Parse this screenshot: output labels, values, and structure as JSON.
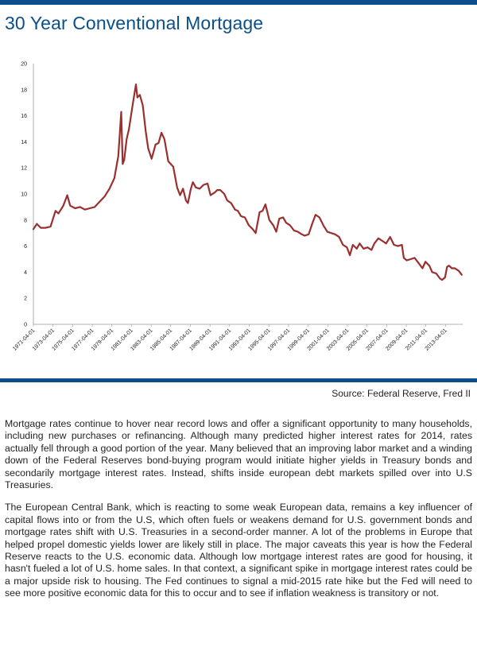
{
  "title": "30 Year Conventional Mortgage",
  "source": "Source: Federal Reserve, Fred II",
  "paragraphs": [
    "Mortgage rates continue to hover near record lows and offer a significant opportunity to many households, including new purchases or refinancing. Although many predicted higher interest rates for 2014, rates actually fell through a good portion of the year. Many believed that an improving labor market and a winding down of the Federal Reserves bond-buying program would initiate higher yields in Treasury bonds and secondarily mortgage interest rates. Instead, shifts inside european debt markets spilled over into U.S Treasuries.",
    "The European Central Bank, which is reacting to some weak European data, remains a key influencer of capital flows into or from the U.S, which often fuels or weakens demand for U.S. government bonds and mortgage rates shift with U.S. Treasuries in a second-order manner. A lot of the problems in Europe that helped propel domestic yields lower are likely still in place. The major caveats this year is how the Federal Reserve reacts to the U.S. economic data. Although low mortgage interest rates are good for housing, it hasn't fueled a lot of U.S. home sales. In that context, a significant spike in mortgage interest rates could be a major upside risk to housing. The Fed continues to signal a mid-2015 rate hike but the Fed will need to see more positive economic data for this to occur and to see if inflation weakness is transitory or not."
  ],
  "chart_data": {
    "type": "line",
    "title": "",
    "xlabel": "",
    "ylabel": "",
    "ylim": [
      0,
      20
    ],
    "yticks": [
      "0",
      "2",
      "4",
      "6",
      "8",
      "10",
      "12",
      "14",
      "16",
      "18",
      "20"
    ],
    "xticks": [
      "1971-04-01",
      "1973-04-01",
      "1975-04-01",
      "1977-04-01",
      "1979-04-01",
      "1981-04-01",
      "1983-04-01",
      "1985-04-01",
      "1987-04-01",
      "1989-04-01",
      "1991-04-01",
      "1993-04-01",
      "1995-04-01",
      "1997-04-01",
      "1999-04-01",
      "2001-04-01",
      "2003-04-01",
      "2005-04-01",
      "2007-04-01",
      "2009-04-01",
      "2011-04-01",
      "2013-04-01"
    ],
    "grid": false,
    "line_color": "#9b2f2f",
    "series": [
      {
        "x": [
          1971.25,
          1971.6,
          1972.0,
          1972.5,
          1973.0,
          1973.5,
          1973.8,
          1974.3,
          1974.7,
          1975.0,
          1975.5,
          1976.0,
          1976.5,
          1977.0,
          1977.5,
          1978.0,
          1978.5,
          1979.0,
          1979.5,
          1979.9,
          1980.2,
          1980.35,
          1980.5,
          1980.75,
          1981.0,
          1981.3,
          1981.7,
          1981.85,
          1982.1,
          1982.4,
          1982.7,
          1982.95,
          1983.3,
          1983.7,
          1984.0,
          1984.3,
          1984.6,
          1985.0,
          1985.5,
          1985.9,
          1986.2,
          1986.5,
          1986.8,
          1987.0,
          1987.3,
          1987.5,
          1987.8,
          1988.2,
          1988.6,
          1989.0,
          1989.3,
          1989.7,
          1990.0,
          1990.3,
          1990.7,
          1991.0,
          1991.4,
          1991.8,
          1992.1,
          1992.4,
          1992.8,
          1993.2,
          1993.6,
          1993.9,
          1994.3,
          1994.6,
          1994.9,
          1995.3,
          1995.7,
          1996.0,
          1996.3,
          1996.7,
          1997.0,
          1997.4,
          1997.8,
          1998.2,
          1998.6,
          1998.9,
          1999.3,
          1999.7,
          2000.0,
          2000.4,
          2000.8,
          2001.2,
          2001.6,
          2002.0,
          2002.4,
          2002.8,
          2003.2,
          2003.5,
          2003.8,
          2004.2,
          2004.5,
          2004.9,
          2005.3,
          2005.7,
          2006.0,
          2006.4,
          2006.8,
          2007.2,
          2007.6,
          2008.0,
          2008.4,
          2008.8,
          2009.0,
          2009.3,
          2009.7,
          2010.1,
          2010.5,
          2010.9,
          2011.2,
          2011.6,
          2011.9,
          2012.3,
          2012.7,
          2012.9,
          2013.2,
          2013.4,
          2013.6,
          2013.9,
          2014.2,
          2014.6,
          2014.9
        ],
        "y": [
          7.3,
          7.7,
          7.4,
          7.4,
          7.5,
          8.7,
          8.5,
          9.1,
          9.9,
          9.1,
          8.9,
          9.0,
          8.8,
          8.9,
          9.0,
          9.4,
          9.8,
          10.4,
          11.2,
          12.9,
          16.3,
          12.3,
          12.6,
          14.2,
          15.0,
          16.5,
          18.4,
          17.4,
          17.6,
          16.8,
          14.8,
          13.5,
          12.7,
          13.8,
          13.9,
          14.7,
          14.2,
          12.5,
          12.1,
          10.5,
          9.9,
          10.4,
          9.5,
          9.3,
          10.4,
          10.9,
          10.5,
          10.4,
          10.7,
          10.8,
          9.9,
          10.1,
          10.3,
          10.3,
          10.0,
          9.5,
          9.3,
          8.8,
          8.7,
          8.3,
          8.2,
          7.6,
          7.3,
          7.0,
          8.6,
          8.7,
          9.2,
          8.0,
          7.6,
          7.1,
          8.1,
          8.2,
          7.8,
          7.6,
          7.2,
          7.1,
          6.9,
          6.8,
          6.9,
          7.8,
          8.4,
          8.2,
          7.6,
          7.1,
          7.0,
          6.9,
          6.7,
          6.1,
          5.9,
          5.3,
          6.1,
          5.8,
          6.2,
          5.8,
          5.9,
          5.7,
          6.2,
          6.6,
          6.4,
          6.2,
          6.7,
          6.1,
          6.0,
          6.1,
          5.1,
          4.9,
          5.0,
          5.1,
          4.7,
          4.3,
          4.8,
          4.5,
          4.0,
          3.9,
          3.5,
          3.4,
          3.6,
          4.4,
          4.5,
          4.3,
          4.3,
          4.1,
          3.8
        ]
      }
    ]
  }
}
